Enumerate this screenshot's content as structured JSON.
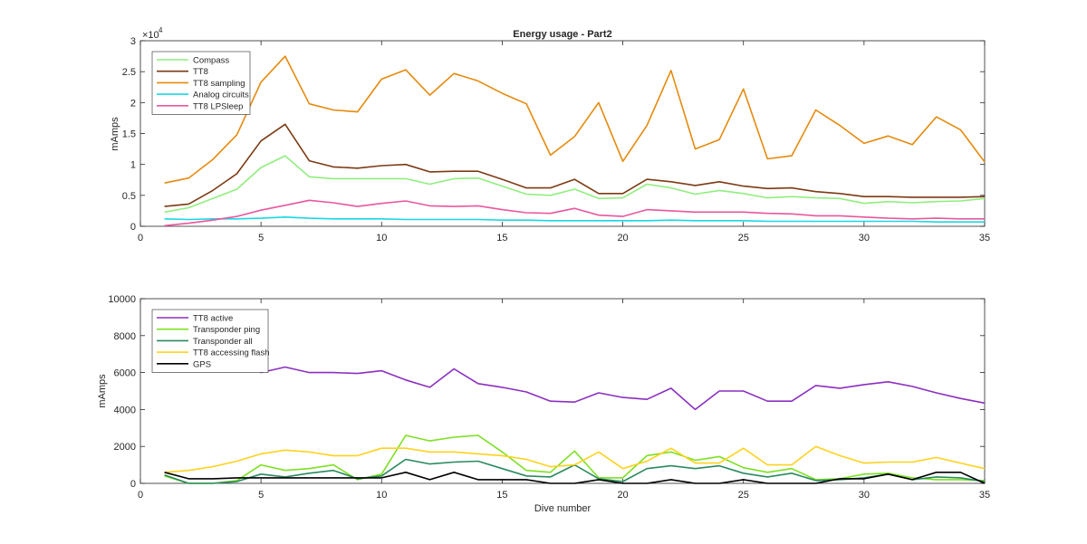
{
  "chart_data": [
    {
      "type": "line",
      "title": "Energy usage - Part2",
      "xlabel": "",
      "ylabel": "mAmps",
      "exponent_label": "×10",
      "exponent_power": "4",
      "xlim": [
        0,
        35
      ],
      "ylim": [
        0,
        30000
      ],
      "xticks": [
        "0",
        "5",
        "10",
        "15",
        "20",
        "25",
        "30",
        "35"
      ],
      "xtick_values": [
        0,
        5,
        10,
        15,
        20,
        25,
        30,
        35
      ],
      "yticks": [
        "0",
        "0.5",
        "1",
        "1.5",
        "2",
        "2.5",
        "3"
      ],
      "ytick_values": [
        0,
        5000,
        10000,
        15000,
        20000,
        25000,
        30000
      ],
      "grid": false,
      "legend_position": "top-left",
      "x": [
        1,
        2,
        3,
        4,
        5,
        6,
        7,
        8,
        9,
        10,
        11,
        12,
        13,
        14,
        15,
        16,
        17,
        18,
        19,
        20,
        21,
        22,
        23,
        24,
        25,
        26,
        27,
        28,
        29,
        30,
        31,
        32,
        33,
        34,
        35
      ],
      "series": [
        {
          "name": "Compass",
          "color": "#90ee7e",
          "values": [
            2300,
            3000,
            4500,
            6000,
            9500,
            11400,
            8000,
            7700,
            7700,
            7700,
            7700,
            6800,
            7700,
            7800,
            6500,
            5200,
            5000,
            6000,
            4500,
            4600,
            6800,
            6200,
            5200,
            5800,
            5300,
            4600,
            4800,
            4600,
            4500,
            3700,
            4000,
            3800,
            4000,
            4100,
            4500
          ]
        },
        {
          "name": "TT8",
          "color": "#7b3a14",
          "values": [
            3200,
            3600,
            5800,
            8500,
            13800,
            16500,
            10600,
            9600,
            9400,
            9800,
            10000,
            8800,
            8900,
            8900,
            7600,
            6200,
            6200,
            7600,
            5300,
            5300,
            7600,
            7200,
            6600,
            7200,
            6500,
            6100,
            6200,
            5600,
            5300,
            4800,
            4800,
            4700,
            4700,
            4700,
            4800
          ]
        },
        {
          "name": "TT8 sampling",
          "color": "#e58a0d",
          "values": [
            7000,
            7800,
            10800,
            14800,
            23300,
            27500,
            19800,
            18800,
            18500,
            23800,
            25300,
            21200,
            24700,
            23500,
            21500,
            19800,
            11500,
            14500,
            20000,
            10500,
            16300,
            25200,
            12500,
            14000,
            22200,
            10900,
            11400,
            18800,
            16300,
            13400,
            14600,
            13200,
            17700,
            15600,
            10400
          ]
        },
        {
          "name": "Analog circuits",
          "color": "#18d8e3",
          "values": [
            1200,
            1100,
            1200,
            1200,
            1300,
            1500,
            1300,
            1200,
            1200,
            1200,
            1100,
            1100,
            1100,
            1100,
            1000,
            1000,
            900,
            900,
            900,
            900,
            900,
            1000,
            900,
            900,
            900,
            800,
            800,
            800,
            800,
            800,
            800,
            800,
            700,
            700,
            700
          ]
        },
        {
          "name": "TT8 LPSleep",
          "color": "#e8579e",
          "values": [
            100,
            500,
            1000,
            1600,
            2600,
            3400,
            4200,
            3800,
            3200,
            3700,
            4100,
            3300,
            3200,
            3300,
            2700,
            2200,
            2100,
            2900,
            1800,
            1600,
            2700,
            2500,
            2300,
            2300,
            2300,
            2100,
            2000,
            1700,
            1700,
            1500,
            1300,
            1200,
            1300,
            1200,
            1200
          ]
        }
      ]
    },
    {
      "type": "line",
      "title": "",
      "xlabel": "Dive number",
      "ylabel": "mAmps",
      "xlim": [
        0,
        35
      ],
      "ylim": [
        0,
        10000
      ],
      "xticks": [
        "0",
        "5",
        "10",
        "15",
        "20",
        "25",
        "30",
        "35"
      ],
      "xtick_values": [
        0,
        5,
        10,
        15,
        20,
        25,
        30,
        35
      ],
      "yticks": [
        "0",
        "2000",
        "4000",
        "6000",
        "8000",
        "10000"
      ],
      "ytick_values": [
        0,
        2000,
        4000,
        6000,
        8000,
        10000
      ],
      "grid": false,
      "legend_position": "top-left",
      "x": [
        1,
        2,
        3,
        4,
        5,
        6,
        7,
        8,
        9,
        10,
        11,
        12,
        13,
        14,
        15,
        16,
        17,
        18,
        19,
        20,
        21,
        22,
        23,
        24,
        25,
        26,
        27,
        28,
        29,
        30,
        31,
        32,
        33,
        34,
        35
      ],
      "series": [
        {
          "name": "TT8 active",
          "color": "#8b2fbf",
          "values": [
            6600,
            6700,
            6700,
            6700,
            6000,
            6300,
            6000,
            6000,
            5950,
            6100,
            5600,
            5200,
            6200,
            5400,
            5200,
            4950,
            4450,
            4400,
            4900,
            4650,
            4550,
            5150,
            4000,
            5000,
            5000,
            4450,
            4450,
            5300,
            5150,
            5350,
            5500,
            5250,
            4900,
            4600,
            4350
          ]
        },
        {
          "name": "Transponder ping",
          "color": "#7de022",
          "values": [
            400,
            0,
            0,
            150,
            1000,
            700,
            800,
            1000,
            200,
            500,
            2600,
            2300,
            2500,
            2600,
            1700,
            700,
            600,
            1750,
            300,
            300,
            1500,
            1700,
            1250,
            1450,
            850,
            600,
            800,
            200,
            250,
            500,
            550,
            300,
            200,
            200,
            150
          ]
        },
        {
          "name": "Transponder all",
          "color": "#2a8a5e",
          "values": [
            450,
            0,
            0,
            100,
            500,
            350,
            550,
            700,
            250,
            400,
            1300,
            1050,
            1150,
            1200,
            800,
            400,
            350,
            1000,
            250,
            100,
            800,
            950,
            800,
            950,
            550,
            350,
            550,
            150,
            200,
            300,
            500,
            200,
            350,
            300,
            100
          ]
        },
        {
          "name": "TT8 accessing flash",
          "color": "#ffd21e",
          "values": [
            600,
            700,
            900,
            1200,
            1600,
            1800,
            1700,
            1500,
            1500,
            1900,
            1900,
            1700,
            1700,
            1600,
            1500,
            1300,
            900,
            1000,
            1700,
            800,
            1200,
            1900,
            1100,
            1100,
            1900,
            1000,
            1000,
            2000,
            1500,
            1100,
            1150,
            1150,
            1400,
            1100,
            800
          ]
        },
        {
          "name": "GPS",
          "color": "#000000",
          "values": [
            600,
            250,
            250,
            300,
            300,
            300,
            300,
            300,
            300,
            300,
            600,
            200,
            600,
            200,
            200,
            200,
            0,
            0,
            200,
            0,
            0,
            200,
            0,
            0,
            200,
            0,
            0,
            0,
            250,
            250,
            500,
            200,
            600,
            600,
            0
          ]
        }
      ]
    }
  ]
}
